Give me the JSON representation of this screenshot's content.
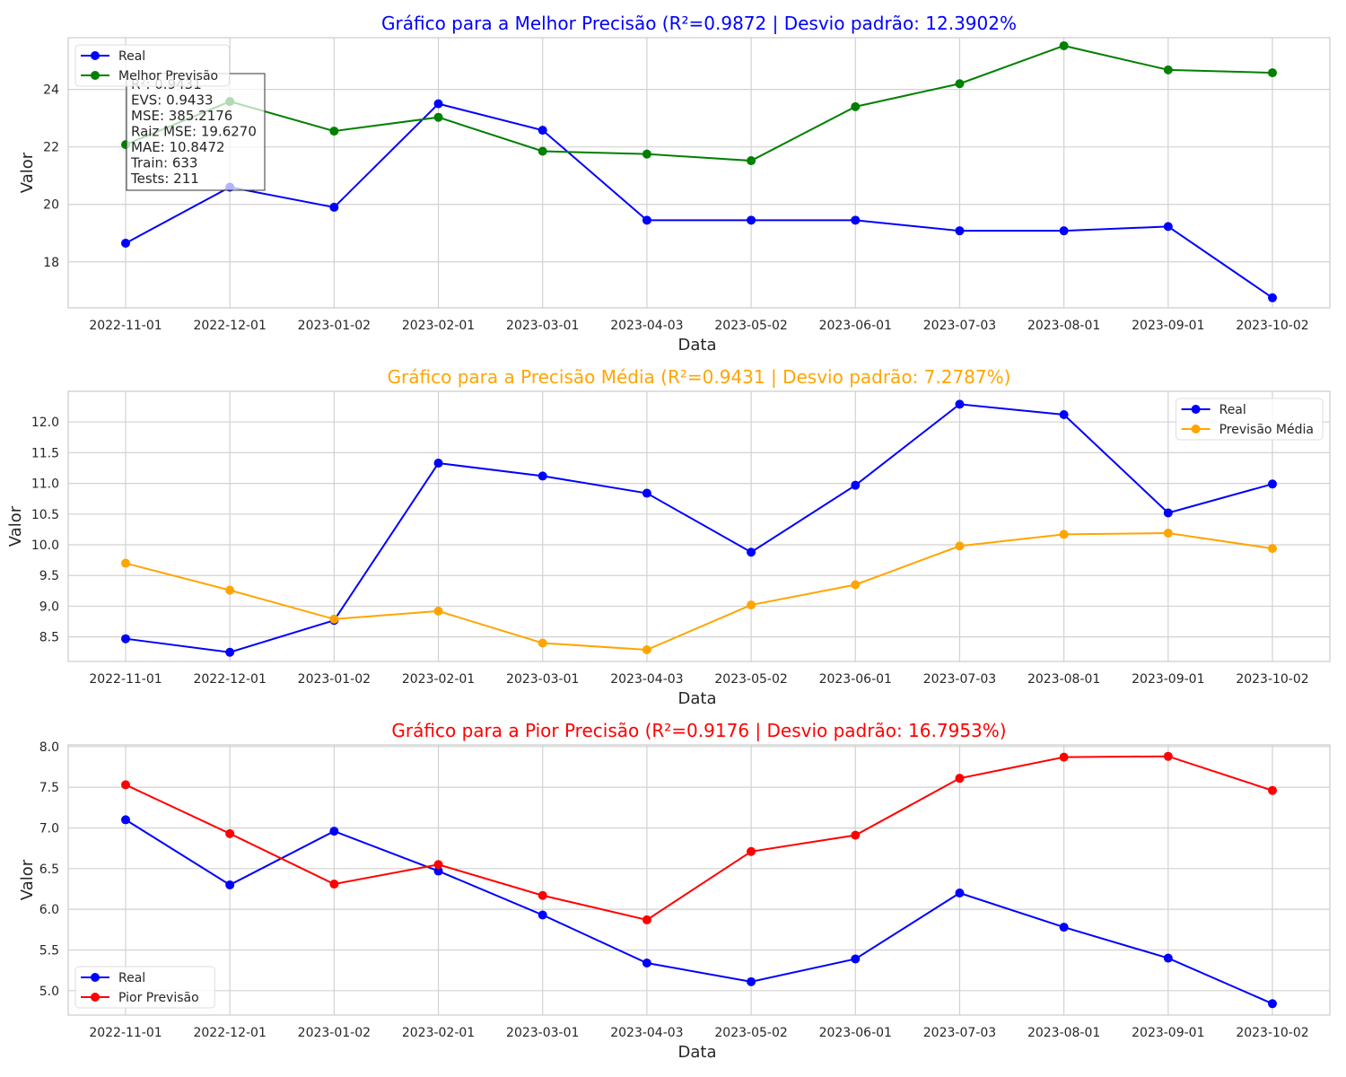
{
  "chart_data": [
    {
      "type": "line",
      "title": "Gráfico para a Melhor Precisão (R²=0.9872 | Desvio padrão: 12.3902%",
      "title_color": "#0000ff",
      "xlabel": "Data",
      "ylabel": "Valor",
      "categories": [
        "2022-11-01",
        "2022-12-01",
        "2023-01-02",
        "2023-02-01",
        "2023-03-01",
        "2023-04-03",
        "2023-05-02",
        "2023-06-01",
        "2023-07-03",
        "2023-08-01",
        "2023-09-01",
        "2023-10-02"
      ],
      "ylim": [
        16.4,
        25.8
      ],
      "yticks": [
        "18",
        "20",
        "22",
        "24"
      ],
      "grid": true,
      "legend_position": "upper-left",
      "series": [
        {
          "name": "Real",
          "color": "#0000ff",
          "values": [
            18.65,
            20.6,
            19.9,
            23.5,
            22.58,
            19.45,
            19.45,
            19.45,
            19.08,
            19.08,
            19.23,
            16.75
          ]
        },
        {
          "name": "Melhor Previsão",
          "color": "#008000",
          "values": [
            22.08,
            23.58,
            22.55,
            23.03,
            21.85,
            21.75,
            21.52,
            23.4,
            24.2,
            25.52,
            24.68,
            24.58
          ]
        }
      ],
      "stats_box": [
        "R²: 0.9431",
        "EVS: 0.9433",
        "MSE: 385.2176",
        "Raiz MSE: 19.6270",
        "MAE: 10.8472",
        "Train: 633",
        "Tests: 211"
      ]
    },
    {
      "type": "line",
      "title": "Gráfico para a Precisão Média (R²=0.9431 | Desvio padrão: 7.2787%)",
      "title_color": "#ffa500",
      "xlabel": "Data",
      "ylabel": "Valor",
      "categories": [
        "2022-11-01",
        "2022-12-01",
        "2023-01-02",
        "2023-02-01",
        "2023-03-01",
        "2023-04-03",
        "2023-05-02",
        "2023-06-01",
        "2023-07-03",
        "2023-08-01",
        "2023-09-01",
        "2023-10-02"
      ],
      "ylim": [
        8.1,
        12.5
      ],
      "yticks": [
        "8.5",
        "9.0",
        "9.5",
        "10.0",
        "10.5",
        "11.0",
        "11.5",
        "12.0"
      ],
      "grid": true,
      "legend_position": "upper-right",
      "series": [
        {
          "name": "Real",
          "color": "#0000ff",
          "values": [
            8.47,
            8.25,
            8.77,
            11.33,
            11.12,
            10.84,
            9.88,
            10.97,
            12.29,
            12.12,
            10.52,
            10.99
          ]
        },
        {
          "name": "Previsão Média",
          "color": "#ffa500",
          "values": [
            9.7,
            9.26,
            8.79,
            8.92,
            8.4,
            8.29,
            9.02,
            9.35,
            9.98,
            10.17,
            10.19,
            9.94
          ]
        }
      ]
    },
    {
      "type": "line",
      "title": "Gráfico para a Pior Precisão (R²=0.9176 | Desvio padrão: 16.7953%)",
      "title_color": "#ff0000",
      "xlabel": "Data",
      "ylabel": "Valor",
      "categories": [
        "2022-11-01",
        "2022-12-01",
        "2023-01-02",
        "2023-02-01",
        "2023-03-01",
        "2023-04-03",
        "2023-05-02",
        "2023-06-01",
        "2023-07-03",
        "2023-08-01",
        "2023-09-01",
        "2023-10-02"
      ],
      "ylim": [
        4.7,
        8.02
      ],
      "yticks": [
        "5.0",
        "5.5",
        "6.0",
        "6.5",
        "7.0",
        "7.5",
        "8.0"
      ],
      "grid": true,
      "legend_position": "lower-left",
      "series": [
        {
          "name": "Real",
          "color": "#0000ff",
          "values": [
            7.1,
            6.3,
            6.96,
            6.47,
            5.93,
            5.34,
            5.11,
            5.39,
            6.2,
            5.78,
            5.4,
            4.84
          ]
        },
        {
          "name": "Pior Previsão",
          "color": "#ff0000",
          "values": [
            7.53,
            6.93,
            6.31,
            6.55,
            6.17,
            5.87,
            6.71,
            6.91,
            7.61,
            7.87,
            7.88,
            7.46
          ]
        }
      ]
    }
  ]
}
